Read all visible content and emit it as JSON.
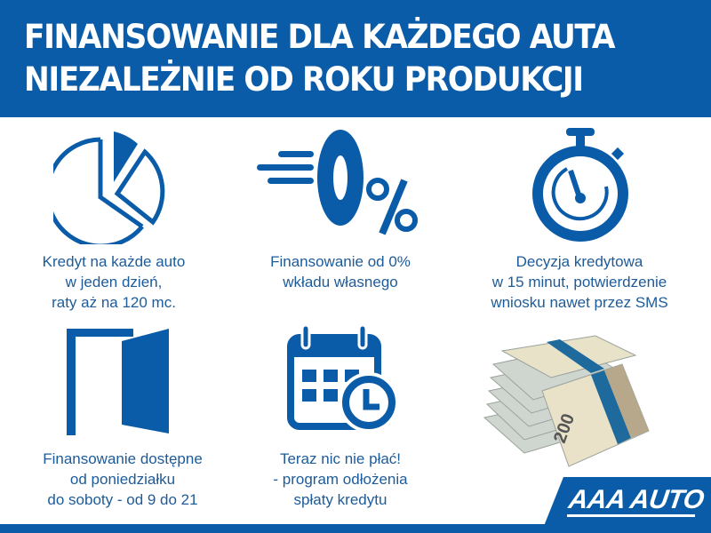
{
  "header": {
    "line1": "FINANSOWANIE DLA KAŻDEGO AUTA",
    "line2": "NIEZALEŻNIE OD ROKU PRODUKCJI"
  },
  "features": [
    {
      "icon": "pie-chart-icon",
      "lines": [
        "Kredyt na każde auto",
        "w jeden dzień,",
        "raty aż na 120 mc."
      ]
    },
    {
      "icon": "zero-percent-icon",
      "icon_text": "0%",
      "lines": [
        "Finansowanie od 0%",
        "wkładu własnego"
      ]
    },
    {
      "icon": "stopwatch-icon",
      "lines": [
        "Decyzja kredytowa",
        "w 15 minut, potwierdzenie",
        "wniosku nawet przez SMS"
      ]
    },
    {
      "icon": "open-door-icon",
      "lines": [
        "Finansowanie dostępne",
        "od poniedziałku",
        "do soboty - od 9 do 21"
      ]
    },
    {
      "icon": "calendar-clock-icon",
      "lines": [
        "Teraz nic nie płać!",
        "- program odłożenia",
        "spłaty kredytu"
      ]
    },
    {
      "icon": "money-stack-image",
      "banknote_text": "200"
    }
  ],
  "logo": {
    "text": "AAA AUTO"
  },
  "colors": {
    "brand_blue": "#0a5ca8",
    "text_blue": "#1d5b99"
  }
}
